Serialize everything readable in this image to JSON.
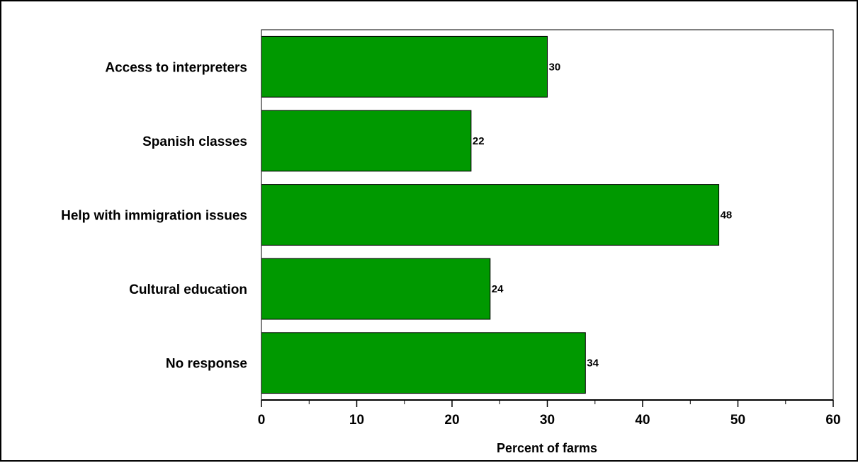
{
  "chart_data": {
    "type": "bar",
    "orientation": "horizontal",
    "categories": [
      "Access to interpreters",
      "Spanish classes",
      "Help with immigration issues",
      "Cultural education",
      "No response"
    ],
    "values": [
      30,
      22,
      48,
      24,
      34
    ],
    "value_labels": [
      "30",
      "22",
      "48",
      "24",
      "34"
    ],
    "title": "",
    "xlabel": "Percent of farms",
    "ylabel": "",
    "xlim": [
      0,
      60
    ],
    "x_ticks": [
      0,
      10,
      20,
      30,
      40,
      50,
      60
    ],
    "x_tick_labels": [
      "0",
      "10",
      "20",
      "30",
      "40",
      "50",
      "60"
    ],
    "grid": false,
    "legend": "none",
    "bar_color": "#009900",
    "bar_edge_color": "#000000"
  }
}
